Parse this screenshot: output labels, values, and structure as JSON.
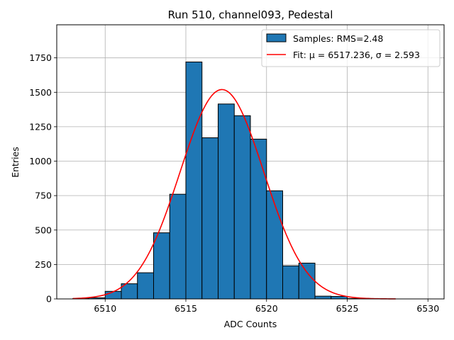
{
  "chart_data": {
    "type": "bar",
    "title": "Run 510, channel093, Pedestal",
    "xlabel": "ADC Counts",
    "ylabel": "Entries",
    "xlim": [
      6507,
      6531
    ],
    "ylim": [
      0,
      1990
    ],
    "xticks": [
      6510,
      6515,
      6520,
      6525,
      6530
    ],
    "yticks": [
      0,
      250,
      500,
      750,
      1000,
      1250,
      1500,
      1750
    ],
    "grid": true,
    "legend_position": "top-right",
    "bin_width": 1,
    "bins": [
      {
        "x": 6508,
        "value": 3
      },
      {
        "x": 6509,
        "value": 8
      },
      {
        "x": 6510,
        "value": 55
      },
      {
        "x": 6511,
        "value": 110
      },
      {
        "x": 6512,
        "value": 190
      },
      {
        "x": 6513,
        "value": 480
      },
      {
        "x": 6514,
        "value": 760
      },
      {
        "x": 6515,
        "value": 1720
      },
      {
        "x": 6516,
        "value": 1170
      },
      {
        "x": 6517,
        "value": 1415
      },
      {
        "x": 6518,
        "value": 1330
      },
      {
        "x": 6519,
        "value": 1160
      },
      {
        "x": 6520,
        "value": 785
      },
      {
        "x": 6521,
        "value": 240
      },
      {
        "x": 6522,
        "value": 260
      },
      {
        "x": 6523,
        "value": 20
      },
      {
        "x": 6524,
        "value": 18
      },
      {
        "x": 6525,
        "value": 3
      },
      {
        "x": 6526,
        "value": 2
      }
    ],
    "series": [
      {
        "name": "Samples: RMS=2.48",
        "type": "histogram",
        "color": "#1f77b4",
        "edge_color": "#000000"
      },
      {
        "name": "Fit: μ = 6517.236, σ = 2.593",
        "type": "line",
        "color": "#ff0000",
        "mu": 6517.236,
        "sigma": 2.593,
        "amplitude": 1520,
        "x_range": [
          6508,
          6528
        ]
      }
    ]
  }
}
